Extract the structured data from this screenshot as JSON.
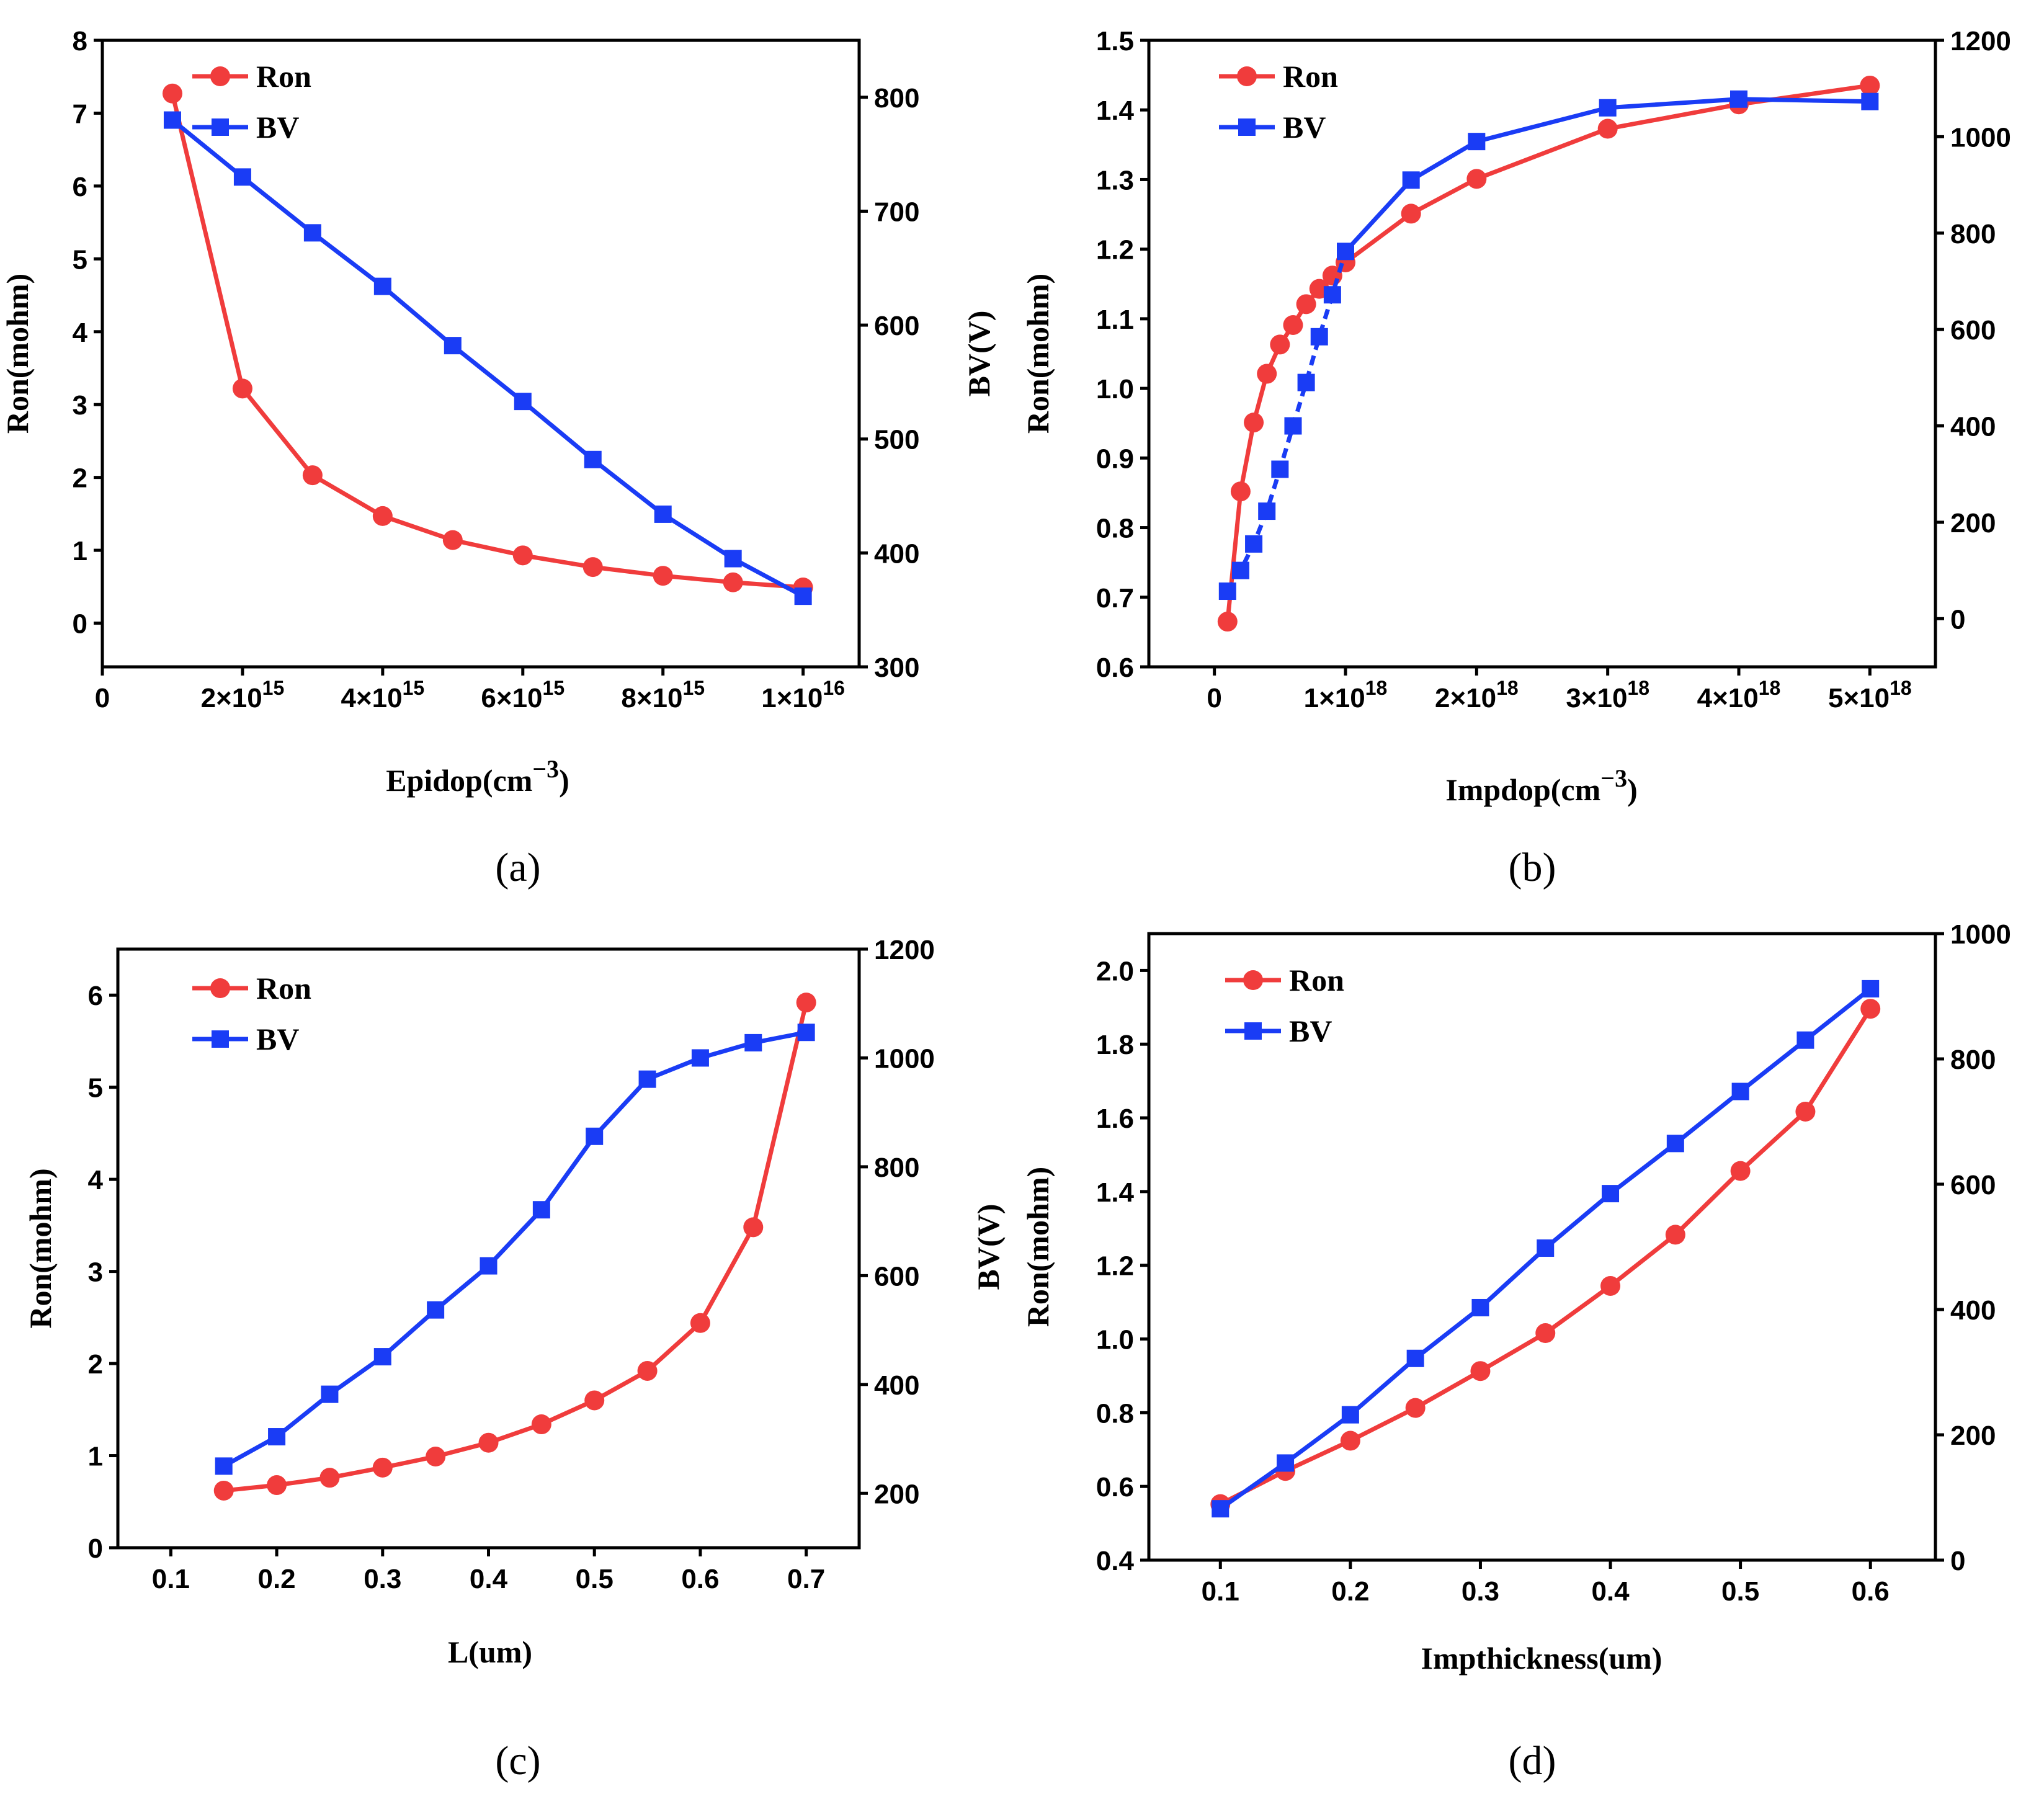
{
  "colors": {
    "ron": "#f03c3c",
    "bv": "#1a3cf5",
    "axis": "#000000"
  },
  "chart_data": [
    {
      "type": "line",
      "panel_label": "(a)",
      "xlabel": "Epidop(cm",
      "xlabel_sup": "−3",
      "xlabel_close": ")",
      "ylabel": "Ron(mohm)",
      "y2label": "BV(V)",
      "xlim": [
        0,
        1.08e+16
      ],
      "ylim": [
        -0.6,
        8
      ],
      "y2lim": [
        300,
        850
      ],
      "x_ticks": [
        {
          "value": 0,
          "base": "0",
          "exp": ""
        },
        {
          "value": 2000000000000000.0,
          "base": "2×10",
          "exp": "15"
        },
        {
          "value": 4000000000000000.0,
          "base": "4×10",
          "exp": "15"
        },
        {
          "value": 6000000000000000.0,
          "base": "6×10",
          "exp": "15"
        },
        {
          "value": 8000000000000000.0,
          "base": "8×10",
          "exp": "15"
        },
        {
          "value": 1e+16,
          "base": "1×10",
          "exp": "16"
        }
      ],
      "y_ticks": [
        0,
        1,
        2,
        3,
        4,
        5,
        6,
        7,
        8
      ],
      "y2_ticks": [
        300,
        400,
        500,
        600,
        700,
        800
      ],
      "legend": [
        "Ron",
        "BV"
      ],
      "series": [
        {
          "name": "Ron",
          "axis": "left",
          "marker": "circle",
          "x": [
            1000000000000000.0,
            2000000000000000.0,
            3000000000000000.0,
            4000000000000000.0,
            5000000000000000.0,
            6000000000000000.0,
            7000000000000000.0,
            8000000000000000.0,
            9000000000000000.0,
            1e+16
          ],
          "y": [
            7.27,
            3.22,
            2.03,
            1.47,
            1.14,
            0.93,
            0.77,
            0.65,
            0.56,
            0.49
          ]
        },
        {
          "name": "BV",
          "axis": "right",
          "marker": "square",
          "x": [
            1000000000000000.0,
            2000000000000000.0,
            3000000000000000.0,
            4000000000000000.0,
            5000000000000000.0,
            6000000000000000.0,
            7000000000000000.0,
            8000000000000000.0,
            9000000000000000.0,
            1e+16
          ],
          "y": [
            780,
            730,
            681,
            634,
            582,
            533,
            482,
            434,
            395,
            362
          ]
        }
      ]
    },
    {
      "type": "line",
      "panel_label": "(b)",
      "xlabel": "Impdop(cm",
      "xlabel_sup": "−3",
      "xlabel_close": ")",
      "ylabel": "Ron(mohm)",
      "y2label": "",
      "xlim": [
        -5e+17,
        5.5e+18
      ],
      "ylim": [
        0.6,
        1.5
      ],
      "y2lim": [
        -100,
        1200
      ],
      "x_ticks": [
        {
          "value": 0,
          "base": "0",
          "exp": ""
        },
        {
          "value": 1e+18,
          "base": "1×10",
          "exp": "18"
        },
        {
          "value": 2e+18,
          "base": "2×10",
          "exp": "18"
        },
        {
          "value": 3e+18,
          "base": "3×10",
          "exp": "18"
        },
        {
          "value": 4e+18,
          "base": "4×10",
          "exp": "18"
        },
        {
          "value": 5e+18,
          "base": "5×10",
          "exp": "18"
        }
      ],
      "y_ticks": [
        "0.6",
        "0.7",
        "0.8",
        "0.9",
        "1.0",
        "1.1",
        "1.2",
        "1.3",
        "1.4",
        "1.5"
      ],
      "y2_ticks": [
        0,
        200,
        400,
        600,
        800,
        1000,
        1200
      ],
      "legend": [
        "Ron",
        "BV"
      ],
      "series": [
        {
          "name": "Ron",
          "axis": "left",
          "marker": "circle",
          "x": [
            1e+17,
            2e+17,
            3e+17,
            4e+17,
            5e+17,
            6e+17,
            7e+17,
            8e+17,
            9e+17,
            1e+18,
            1.5e+18,
            2e+18,
            3e+18,
            4e+18,
            5e+18
          ],
          "y": [
            0.665,
            0.852,
            0.951,
            1.021,
            1.063,
            1.091,
            1.121,
            1.143,
            1.162,
            1.181,
            1.251,
            1.301,
            1.373,
            1.408,
            1.435
          ]
        },
        {
          "name": "BV",
          "axis": "right",
          "marker": "square",
          "dash_until": 9,
          "x": [
            1e+17,
            2e+17,
            3e+17,
            4e+17,
            5e+17,
            6e+17,
            7e+17,
            8e+17,
            9e+17,
            1e+18,
            1.5e+18,
            2e+18,
            3e+18,
            4e+18,
            5e+18
          ],
          "y": [
            57,
            100,
            155,
            223,
            310,
            400,
            490,
            585,
            672,
            762,
            910,
            990,
            1060,
            1078,
            1073
          ]
        }
      ]
    },
    {
      "type": "line",
      "panel_label": "(c)",
      "xlabel": "L(um)",
      "xlabel_sup": "",
      "xlabel_close": "",
      "ylabel": "Ron(mohm)",
      "y2label": "",
      "xlim": [
        0.05,
        0.75
      ],
      "ylim": [
        0,
        6.5
      ],
      "y2lim": [
        100,
        1200
      ],
      "x_ticks": [
        {
          "value": 0.1,
          "base": "0.1",
          "exp": ""
        },
        {
          "value": 0.2,
          "base": "0.2",
          "exp": ""
        },
        {
          "value": 0.3,
          "base": "0.3",
          "exp": ""
        },
        {
          "value": 0.4,
          "base": "0.4",
          "exp": ""
        },
        {
          "value": 0.5,
          "base": "0.5",
          "exp": ""
        },
        {
          "value": 0.6,
          "base": "0.6",
          "exp": ""
        },
        {
          "value": 0.7,
          "base": "0.7",
          "exp": ""
        }
      ],
      "y_ticks": [
        0,
        1,
        2,
        3,
        4,
        5,
        6
      ],
      "y2_ticks": [
        200,
        400,
        600,
        800,
        1000,
        1200
      ],
      "legend": [
        "Ron",
        "BV"
      ],
      "series": [
        {
          "name": "Ron",
          "axis": "left",
          "marker": "circle",
          "x": [
            0.15,
            0.2,
            0.25,
            0.3,
            0.35,
            0.4,
            0.45,
            0.5,
            0.55,
            0.6,
            0.65,
            0.7
          ],
          "y": [
            0.62,
            0.68,
            0.76,
            0.87,
            0.99,
            1.14,
            1.34,
            1.6,
            1.92,
            2.44,
            3.48,
            5.92
          ]
        },
        {
          "name": "BV",
          "axis": "right",
          "marker": "square",
          "x": [
            0.15,
            0.2,
            0.25,
            0.3,
            0.35,
            0.4,
            0.45,
            0.5,
            0.55,
            0.6,
            0.65,
            0.7
          ],
          "y": [
            250,
            304,
            382,
            451,
            537,
            618,
            721,
            856,
            961,
            1000,
            1028,
            1047
          ]
        }
      ]
    },
    {
      "type": "line",
      "panel_label": "(d)",
      "xlabel": "Impthickness(um)",
      "xlabel_sup": "",
      "xlabel_close": "",
      "ylabel": "Ron(mohm)",
      "y2label": "BV(V)",
      "xlim": [
        0.045,
        0.65
      ],
      "ylim": [
        0.4,
        2.1
      ],
      "y2lim": [
        0,
        1000
      ],
      "x_ticks": [
        {
          "value": 0.1,
          "base": "0.1",
          "exp": ""
        },
        {
          "value": 0.2,
          "base": "0.2",
          "exp": ""
        },
        {
          "value": 0.3,
          "base": "0.3",
          "exp": ""
        },
        {
          "value": 0.4,
          "base": "0.4",
          "exp": ""
        },
        {
          "value": 0.5,
          "base": "0.5",
          "exp": ""
        },
        {
          "value": 0.6,
          "base": "0.6",
          "exp": ""
        }
      ],
      "y_ticks": [
        "0.4",
        "0.6",
        "0.8",
        "1.0",
        "1.2",
        "1.4",
        "1.6",
        "1.8",
        "2.0"
      ],
      "y2_ticks": [
        0,
        200,
        400,
        600,
        800,
        1000
      ],
      "legend": [
        "Ron",
        "BV"
      ],
      "series": [
        {
          "name": "Ron",
          "axis": "left",
          "marker": "circle",
          "x": [
            0.1,
            0.15,
            0.2,
            0.25,
            0.3,
            0.35,
            0.4,
            0.45,
            0.5,
            0.55,
            0.6
          ],
          "y": [
            0.552,
            0.642,
            0.724,
            0.813,
            0.913,
            1.016,
            1.144,
            1.283,
            1.456,
            1.617,
            1.896
          ]
        },
        {
          "name": "BV",
          "axis": "right",
          "marker": "square",
          "x": [
            0.1,
            0.15,
            0.2,
            0.25,
            0.3,
            0.35,
            0.4,
            0.45,
            0.5,
            0.55,
            0.6
          ],
          "y": [
            82,
            155,
            232,
            322,
            403,
            498,
            585,
            665,
            748,
            830,
            912
          ]
        }
      ]
    }
  ]
}
